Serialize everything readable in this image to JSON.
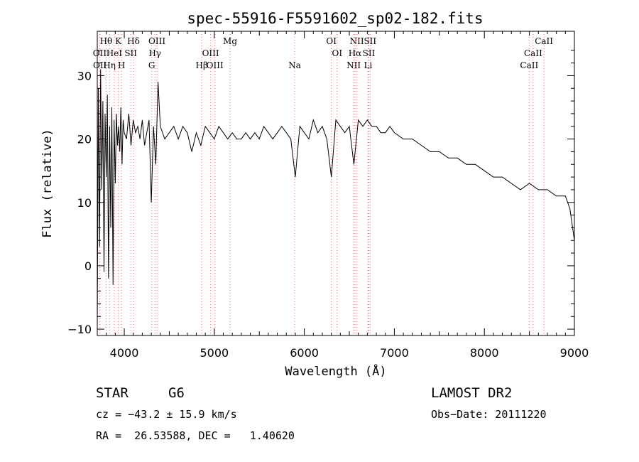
{
  "chart_data": {
    "type": "line",
    "title": "spec-55916-F5591602_sp02-182.fits",
    "xlabel": "Wavelength (Å)",
    "ylabel": "Flux (relative)",
    "xlim": [
      3700,
      9000
    ],
    "ylim": [
      -11,
      37
    ],
    "xticks": [
      4000,
      5000,
      6000,
      7000,
      8000,
      9000
    ],
    "yticks": [
      -10,
      0,
      10,
      20,
      30
    ],
    "grid": false,
    "legend": "none",
    "series": [
      {
        "x": [
          3700,
          3712,
          3725,
          3737,
          3750,
          3762,
          3775,
          3787,
          3800,
          3812,
          3825,
          3837,
          3850,
          3862,
          3875,
          3887,
          3900,
          3912,
          3925,
          3937,
          3950,
          3962,
          3975,
          3987,
          4000,
          4025,
          4050,
          4075,
          4100,
          4125,
          4150,
          4175,
          4200,
          4225,
          4250,
          4275,
          4300,
          4325,
          4350,
          4375,
          4400,
          4450,
          4500,
          4550,
          4600,
          4650,
          4700,
          4750,
          4800,
          4850,
          4900,
          4950,
          5000,
          5050,
          5100,
          5150,
          5200,
          5250,
          5300,
          5350,
          5400,
          5450,
          5500,
          5550,
          5600,
          5650,
          5700,
          5750,
          5800,
          5850,
          5900,
          5950,
          6000,
          6050,
          6100,
          6150,
          6200,
          6250,
          6300,
          6350,
          6400,
          6450,
          6500,
          6550,
          6600,
          6650,
          6700,
          6750,
          6800,
          6850,
          6900,
          6950,
          7000,
          7100,
          7200,
          7300,
          7400,
          7500,
          7600,
          7700,
          7800,
          7900,
          8000,
          8100,
          8200,
          8300,
          8400,
          8500,
          8600,
          8700,
          8800,
          8900,
          8950,
          9000
        ],
        "y": [
          -10,
          28,
          3,
          31,
          12,
          26,
          -1,
          24,
          14,
          27,
          -2,
          22,
          6,
          25,
          -3,
          23,
          13,
          24,
          19,
          22,
          18,
          25,
          16,
          23,
          21,
          20,
          24,
          19,
          23,
          21,
          22,
          20,
          23,
          19,
          21,
          23,
          10,
          22,
          16,
          29,
          22,
          20,
          21,
          22,
          20,
          22,
          21,
          18,
          21,
          19,
          22,
          21,
          20,
          22,
          21,
          20,
          21,
          20,
          20,
          21,
          20,
          21,
          20,
          22,
          21,
          20,
          21,
          22,
          21,
          20,
          14,
          22,
          21,
          20,
          23,
          21,
          22,
          20,
          14,
          23,
          22,
          21,
          22,
          16,
          23,
          22,
          23,
          22,
          22,
          21,
          21,
          22,
          21,
          20,
          20,
          19,
          18,
          18,
          17,
          17,
          16,
          16,
          15,
          14,
          14,
          13,
          12,
          13,
          12,
          12,
          11,
          11,
          9,
          4
        ]
      }
    ],
    "line_labels": [
      {
        "label": "Hθ",
        "x": 3798,
        "row": 0
      },
      {
        "label": "K",
        "x": 3934,
        "row": 0
      },
      {
        "label": "Hδ",
        "x": 4102,
        "row": 0
      },
      {
        "label": "OIII",
        "x": 4363,
        "row": 0
      },
      {
        "label": "Mg",
        "x": 5175,
        "row": 0
      },
      {
        "label": "OI",
        "x": 6300,
        "row": 0
      },
      {
        "label": "NII",
        "x": 6584,
        "row": 0
      },
      {
        "label": "SII",
        "x": 6731,
        "row": 0
      },
      {
        "label": "CaII",
        "x": 8662,
        "row": 0
      },
      {
        "label": "OII",
        "x": 3727,
        "row": 1
      },
      {
        "label": "HeI",
        "x": 3889,
        "row": 1
      },
      {
        "label": "SII",
        "x": 4072,
        "row": 1
      },
      {
        "label": "Hγ",
        "x": 4340,
        "row": 1
      },
      {
        "label": "OIII",
        "x": 4959,
        "row": 1
      },
      {
        "label": "OI",
        "x": 6364,
        "row": 1
      },
      {
        "label": "Hα",
        "x": 6563,
        "row": 1
      },
      {
        "label": "SII",
        "x": 6717,
        "row": 1
      },
      {
        "label": "CaII",
        "x": 8542,
        "row": 1
      },
      {
        "label": "OII",
        "x": 3729,
        "row": 2
      },
      {
        "label": "Hη",
        "x": 3835,
        "row": 2
      },
      {
        "label": "H",
        "x": 3969,
        "row": 2
      },
      {
        "label": "G",
        "x": 4305,
        "row": 2
      },
      {
        "label": "Hβ",
        "x": 4861,
        "row": 2
      },
      {
        "label": "OIII",
        "x": 5007,
        "row": 2
      },
      {
        "label": "Na",
        "x": 5893,
        "row": 2
      },
      {
        "label": "NII",
        "x": 6548,
        "row": 2
      },
      {
        "label": "Li",
        "x": 6708,
        "row": 2
      },
      {
        "label": "CaII",
        "x": 8498,
        "row": 2
      }
    ]
  },
  "info": {
    "object_class": "STAR",
    "subclass": "G6",
    "survey": "LAMOST DR2",
    "redshift": "cz = −43.2 ± 15.9 km/s",
    "obs_date": "Obs−Date: 20111220",
    "coords": "RA =  26.53588, DEC =   1.40620"
  },
  "colors": {
    "line_marker": "#e06a6a",
    "spectrum": "#000000"
  }
}
